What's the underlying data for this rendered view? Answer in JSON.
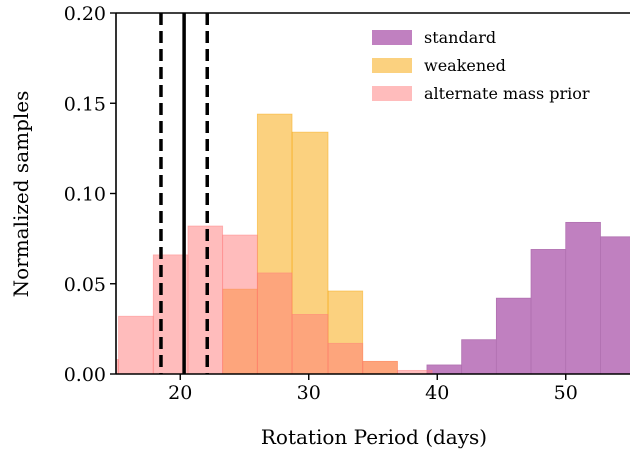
{
  "chart_data": {
    "type": "histogram",
    "xlabel": "Rotation Period (days)",
    "ylabel": "Normalized samples",
    "xlim": [
      15,
      55
    ],
    "ylim": [
      0,
      0.2
    ],
    "xticks": [
      20,
      30,
      40,
      50
    ],
    "yticks": [
      0.0,
      0.05,
      0.1,
      0.15,
      0.2
    ],
    "xtick_labels": [
      "20",
      "30",
      "40",
      "50"
    ],
    "ytick_labels": [
      "0.00",
      "0.05",
      "0.10",
      "0.15",
      "0.20"
    ],
    "legend_position": "top-right",
    "grid": false,
    "series": [
      {
        "name": "standard",
        "color": "#c080c0",
        "edge": "#b070b0",
        "alpha": 1.0,
        "bins": [
          {
            "x0": 39.2,
            "x1": 41.9,
            "y": 0.005
          },
          {
            "x0": 41.9,
            "x1": 44.6,
            "y": 0.019
          },
          {
            "x0": 44.6,
            "x1": 47.3,
            "y": 0.042
          },
          {
            "x0": 47.3,
            "x1": 50.0,
            "y": 0.069
          },
          {
            "x0": 50.0,
            "x1": 52.7,
            "y": 0.084
          },
          {
            "x0": 52.7,
            "x1": 55.4,
            "y": 0.076
          }
        ]
      },
      {
        "name": "weakened",
        "color": "#f7a400",
        "edge": "#f7a400",
        "alpha": 0.5,
        "bins": [
          {
            "x0": 23.3,
            "x1": 26.0,
            "y": 0.047
          },
          {
            "x0": 26.0,
            "x1": 28.7,
            "y": 0.144
          },
          {
            "x0": 28.7,
            "x1": 31.5,
            "y": 0.134
          },
          {
            "x0": 31.5,
            "x1": 34.2,
            "y": 0.046
          },
          {
            "x0": 34.2,
            "x1": 36.9,
            "y": 0.007
          }
        ]
      },
      {
        "name": "alternate mass prior",
        "color": "#ff7a7a",
        "edge": "#ff7a7a",
        "alpha": 0.5,
        "bins": [
          {
            "x0": 12.5,
            "x1": 15.2,
            "y": 0.008
          },
          {
            "x0": 15.2,
            "x1": 17.9,
            "y": 0.032
          },
          {
            "x0": 17.9,
            "x1": 20.6,
            "y": 0.066
          },
          {
            "x0": 20.6,
            "x1": 23.3,
            "y": 0.082
          },
          {
            "x0": 23.3,
            "x1": 26.0,
            "y": 0.077
          },
          {
            "x0": 26.0,
            "x1": 28.7,
            "y": 0.056
          },
          {
            "x0": 28.7,
            "x1": 31.5,
            "y": 0.033
          },
          {
            "x0": 31.5,
            "x1": 34.2,
            "y": 0.017
          },
          {
            "x0": 34.2,
            "x1": 36.9,
            "y": 0.007
          },
          {
            "x0": 36.9,
            "x1": 39.6,
            "y": 0.002
          }
        ]
      }
    ],
    "vlines": [
      {
        "x": 20.3,
        "style": "solid",
        "color": "#000000"
      },
      {
        "x": 18.5,
        "style": "dashed",
        "color": "#000000"
      },
      {
        "x": 22.1,
        "style": "dashed",
        "color": "#000000"
      }
    ]
  }
}
